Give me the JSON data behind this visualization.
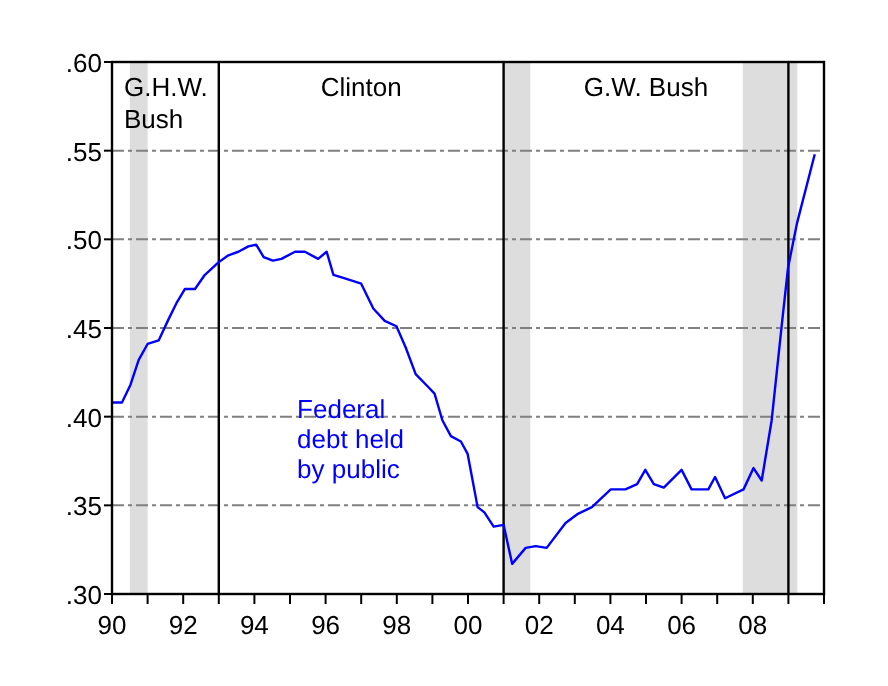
{
  "chart_data": {
    "type": "line",
    "x": [
      1990.0,
      1990.28,
      1990.52,
      1990.75,
      1991.0,
      1991.31,
      1991.59,
      1991.81,
      1992.05,
      1992.33,
      1992.61,
      1992.99,
      1993.27,
      1993.55,
      1993.83,
      1994.05,
      1994.26,
      1994.52,
      1994.76,
      1995.14,
      1995.42,
      1995.79,
      1996.03,
      1996.22,
      1996.54,
      1997.0,
      1997.34,
      1997.66,
      1997.99,
      1998.25,
      1998.53,
      1998.87,
      1999.06,
      1999.28,
      1999.52,
      1999.8,
      1999.99,
      2000.27,
      2000.46,
      2000.72,
      2001.0,
      2001.24,
      2001.62,
      2001.9,
      2002.21,
      2002.74,
      2003.07,
      2003.48,
      2004.01,
      2004.42,
      2004.75,
      2004.98,
      2005.22,
      2005.5,
      2006.0,
      2006.28,
      2006.75,
      2006.94,
      2007.22,
      2007.74,
      2008.02,
      2008.25,
      2008.53,
      2008.81,
      2008.99,
      2009.24,
      2009.74
    ],
    "series": [
      {
        "name": "Federal debt held by public",
        "color": "#0000ff",
        "values": [
          0.408,
          0.408,
          0.418,
          0.432,
          0.441,
          0.443,
          0.455,
          0.464,
          0.472,
          0.472,
          0.48,
          0.487,
          0.491,
          0.493,
          0.496,
          0.497,
          0.49,
          0.488,
          0.489,
          0.493,
          0.493,
          0.489,
          0.493,
          0.48,
          0.478,
          0.475,
          0.461,
          0.454,
          0.451,
          0.439,
          0.424,
          0.417,
          0.413,
          0.398,
          0.389,
          0.386,
          0.379,
          0.349,
          0.346,
          0.338,
          0.339,
          0.317,
          0.326,
          0.327,
          0.326,
          0.34,
          0.345,
          0.349,
          0.359,
          0.359,
          0.362,
          0.37,
          0.362,
          0.36,
          0.37,
          0.359,
          0.359,
          0.366,
          0.354,
          0.359,
          0.371,
          0.364,
          0.398,
          0.451,
          0.484,
          0.509,
          0.548
        ]
      }
    ],
    "xlim": [
      1990,
      2010
    ],
    "xticks": [
      {
        "value": 1990,
        "label": "90"
      },
      {
        "value": 1991,
        "label": null
      },
      {
        "value": 1992,
        "label": "92"
      },
      {
        "value": 1993,
        "label": null
      },
      {
        "value": 1994,
        "label": "94"
      },
      {
        "value": 1995,
        "label": null
      },
      {
        "value": 1996,
        "label": "96"
      },
      {
        "value": 1997,
        "label": null
      },
      {
        "value": 1998,
        "label": "98"
      },
      {
        "value": 1999,
        "label": null
      },
      {
        "value": 2000,
        "label": "00"
      },
      {
        "value": 2001,
        "label": null
      },
      {
        "value": 2002,
        "label": "02"
      },
      {
        "value": 2003,
        "label": null
      },
      {
        "value": 2004,
        "label": "04"
      },
      {
        "value": 2005,
        "label": null
      },
      {
        "value": 2006,
        "label": "06"
      },
      {
        "value": 2007,
        "label": null
      },
      {
        "value": 2008,
        "label": "08"
      },
      {
        "value": 2009,
        "label": null
      },
      {
        "value": 2010,
        "label": null
      }
    ],
    "ylim": [
      0.3,
      0.6
    ],
    "yticks": [
      {
        "value": 0.3,
        "label": ".30"
      },
      {
        "value": 0.35,
        "label": ".35"
      },
      {
        "value": 0.4,
        "label": ".40"
      },
      {
        "value": 0.45,
        "label": ".45"
      },
      {
        "value": 0.5,
        "label": ".50"
      },
      {
        "value": 0.55,
        "label": ".55"
      },
      {
        "value": 0.6,
        "label": ".60"
      }
    ],
    "grid": "y",
    "line_style": "solid",
    "marker": "none",
    "bands": [
      {
        "axis": "x",
        "from": 1990.5,
        "to": 1991.0,
        "color": "#dddddd"
      },
      {
        "axis": "x",
        "from": 2001.0,
        "to": 2001.75,
        "color": "#dddddd"
      },
      {
        "axis": "x",
        "from": 2007.72,
        "to": 2009.25,
        "color": "#dddddd"
      }
    ],
    "ref_lines": [
      {
        "axis": "x",
        "value": 1993.0,
        "color": "#000000"
      },
      {
        "axis": "x",
        "value": 2001.0,
        "color": "#000000"
      },
      {
        "axis": "x",
        "value": 2009.0,
        "color": "#000000"
      }
    ],
    "annotations": [
      "G.H.W.\nBush",
      "Clinton",
      "G.W. Bush"
    ]
  }
}
